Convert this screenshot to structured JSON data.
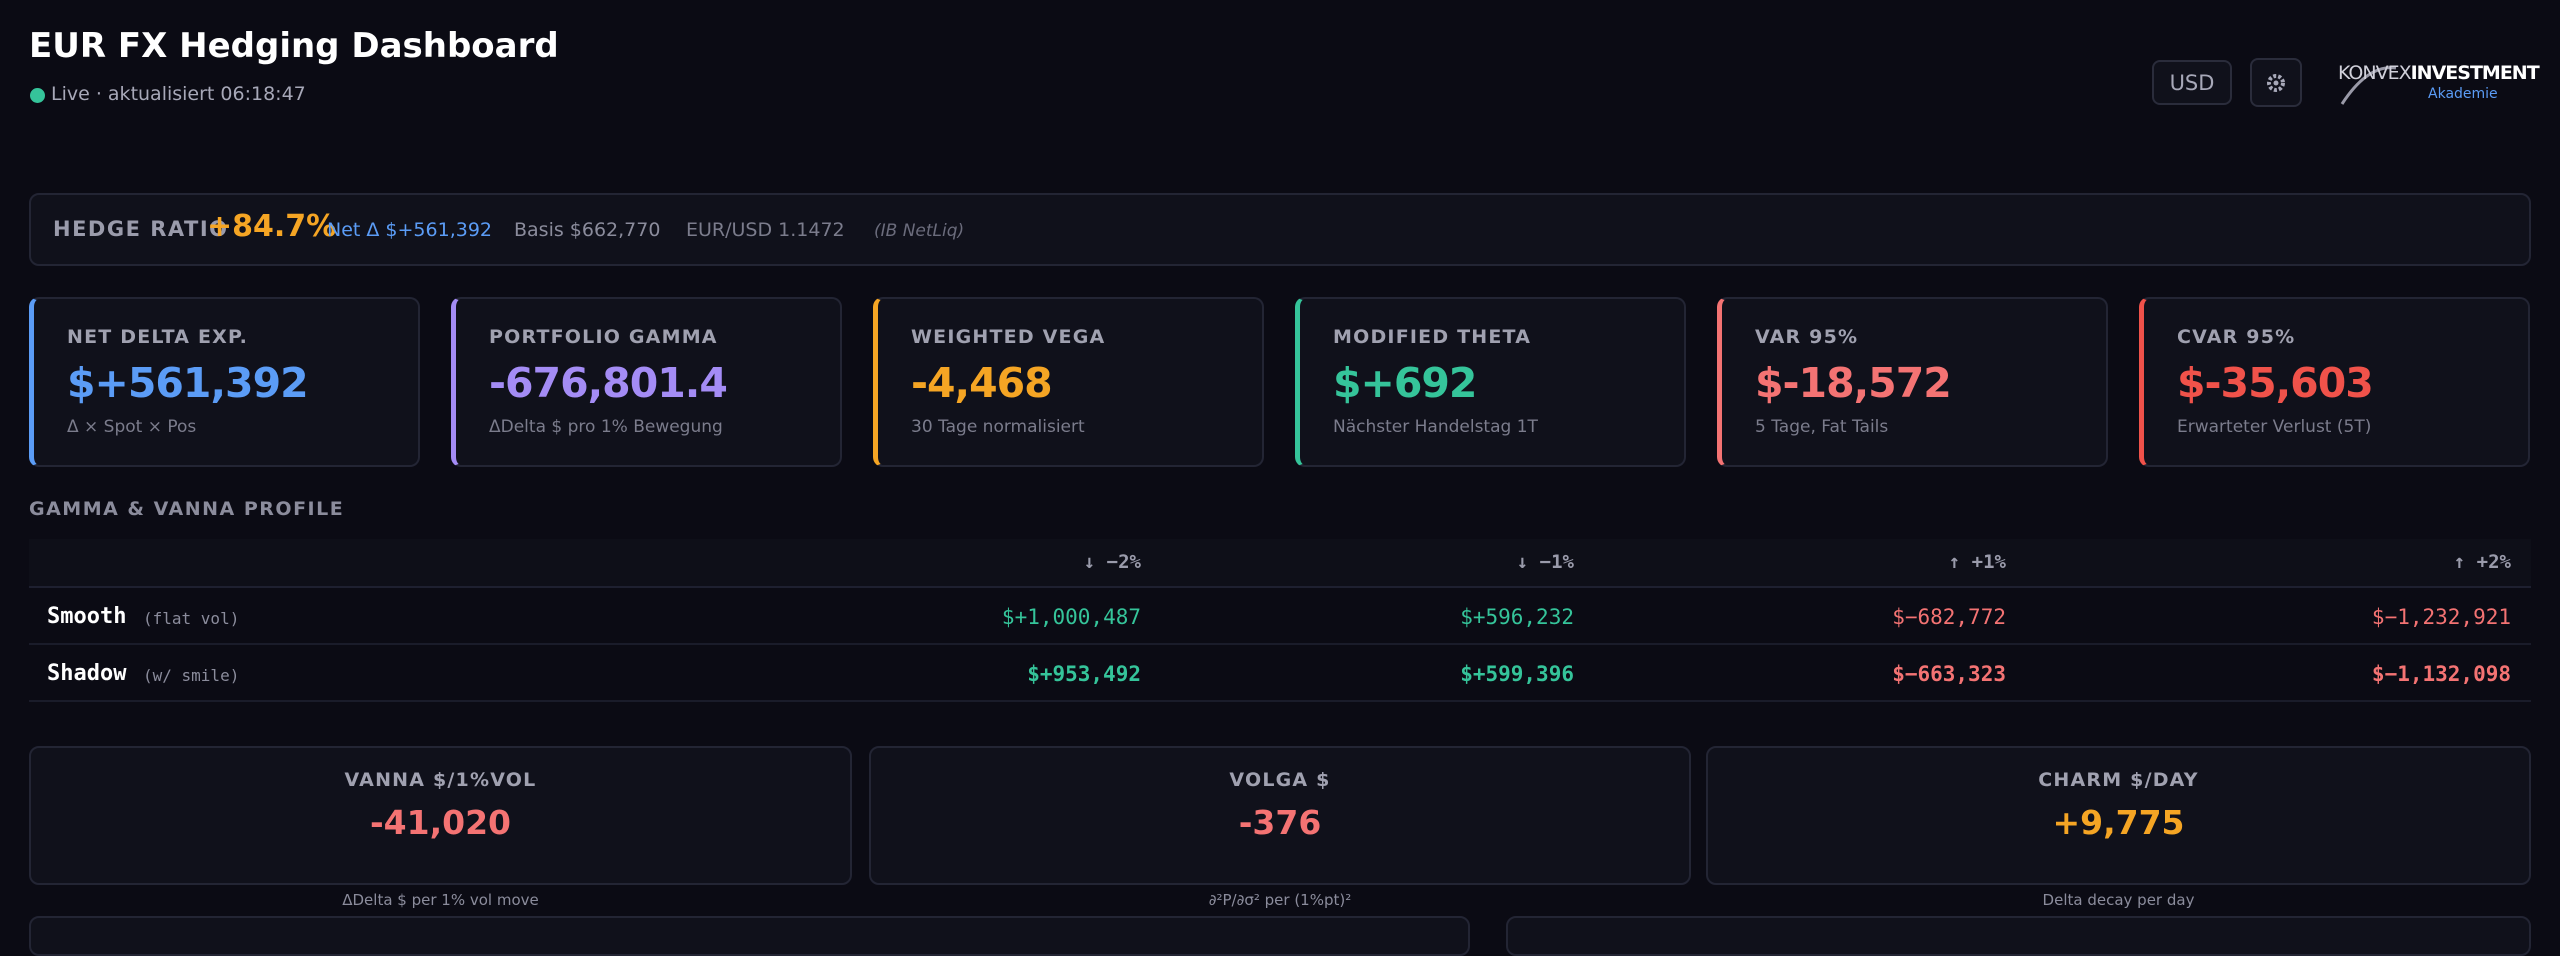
{
  "header": {
    "title": "EUR FX Hedging Dashboard",
    "status": "Live · aktualisiert 06:18:47",
    "currency": "USD",
    "logo": {
      "brand": "KONVEX",
      "brand_strong": "INVESTMENT",
      "sub": "Akademie"
    }
  },
  "hedge_bar": {
    "label": "HEDGE RATIO",
    "value": "+84.7%",
    "net": "Net Δ $+561,392",
    "basis": "Basis $662,770",
    "fx": "EUR/USD 1.1472",
    "source": "(IB NetLiq)"
  },
  "cards": [
    {
      "label": "NET DELTA EXP.",
      "value": "$+561,392",
      "sub": "Δ × Spot × Pos",
      "color": "#5b9cf6"
    },
    {
      "label": "PORTFOLIO GAMMA",
      "value": "-676,801.4",
      "sub": "ΔDelta $ pro 1% Bewegung",
      "color": "#a48cf5"
    },
    {
      "label": "WEIGHTED VEGA",
      "value": "-4,468",
      "sub": "30 Tage normalisiert",
      "color": "#f5a524"
    },
    {
      "label": "MODIFIED THETA",
      "value": "$+692",
      "sub": "Nächster Handelstag 1T",
      "color": "#35c49a"
    },
    {
      "label": "VAR 95%",
      "value": "$-18,572",
      "sub": "5 Tage, Fat Tails",
      "color": "#f47373"
    },
    {
      "label": "CVAR 95%",
      "value": "$-35,603",
      "sub": "Erwarteter Verlust (5T)",
      "color": "#f0524a"
    }
  ],
  "profile": {
    "title": "GAMMA & VANNA PROFILE",
    "columns": [
      "↓ −2%",
      "↓ −1%",
      "↑ +1%",
      "↑ +2%"
    ],
    "rows": [
      {
        "name": "Smooth",
        "note": "(flat vol)",
        "values": [
          "$+1,000,487",
          "$+596,232",
          "$−682,772",
          "$−1,232,921"
        ],
        "colors": [
          "#35c49a",
          "#35c49a",
          "#f47373",
          "#f47373"
        ]
      },
      {
        "name": "Shadow",
        "note": "(w/ smile)",
        "values": [
          "$+953,492",
          "$+599,396",
          "$−663,323",
          "$−1,132,098"
        ],
        "colors": [
          "#35c49a",
          "#35c49a",
          "#f47373",
          "#f47373"
        ]
      }
    ]
  },
  "greeks": [
    {
      "label": "VANNA $/1%VOL",
      "value": "-41,020",
      "caption": "ΔDelta $ per 1% vol move",
      "color": "#f47373"
    },
    {
      "label": "VOLGA $",
      "value": "-376",
      "caption": "∂²P/∂σ² per (1%pt)²",
      "color": "#f47373"
    },
    {
      "label": "CHARM $/DAY",
      "value": "+9,775",
      "caption": "Delta decay per day",
      "color": "#f5a524"
    }
  ]
}
